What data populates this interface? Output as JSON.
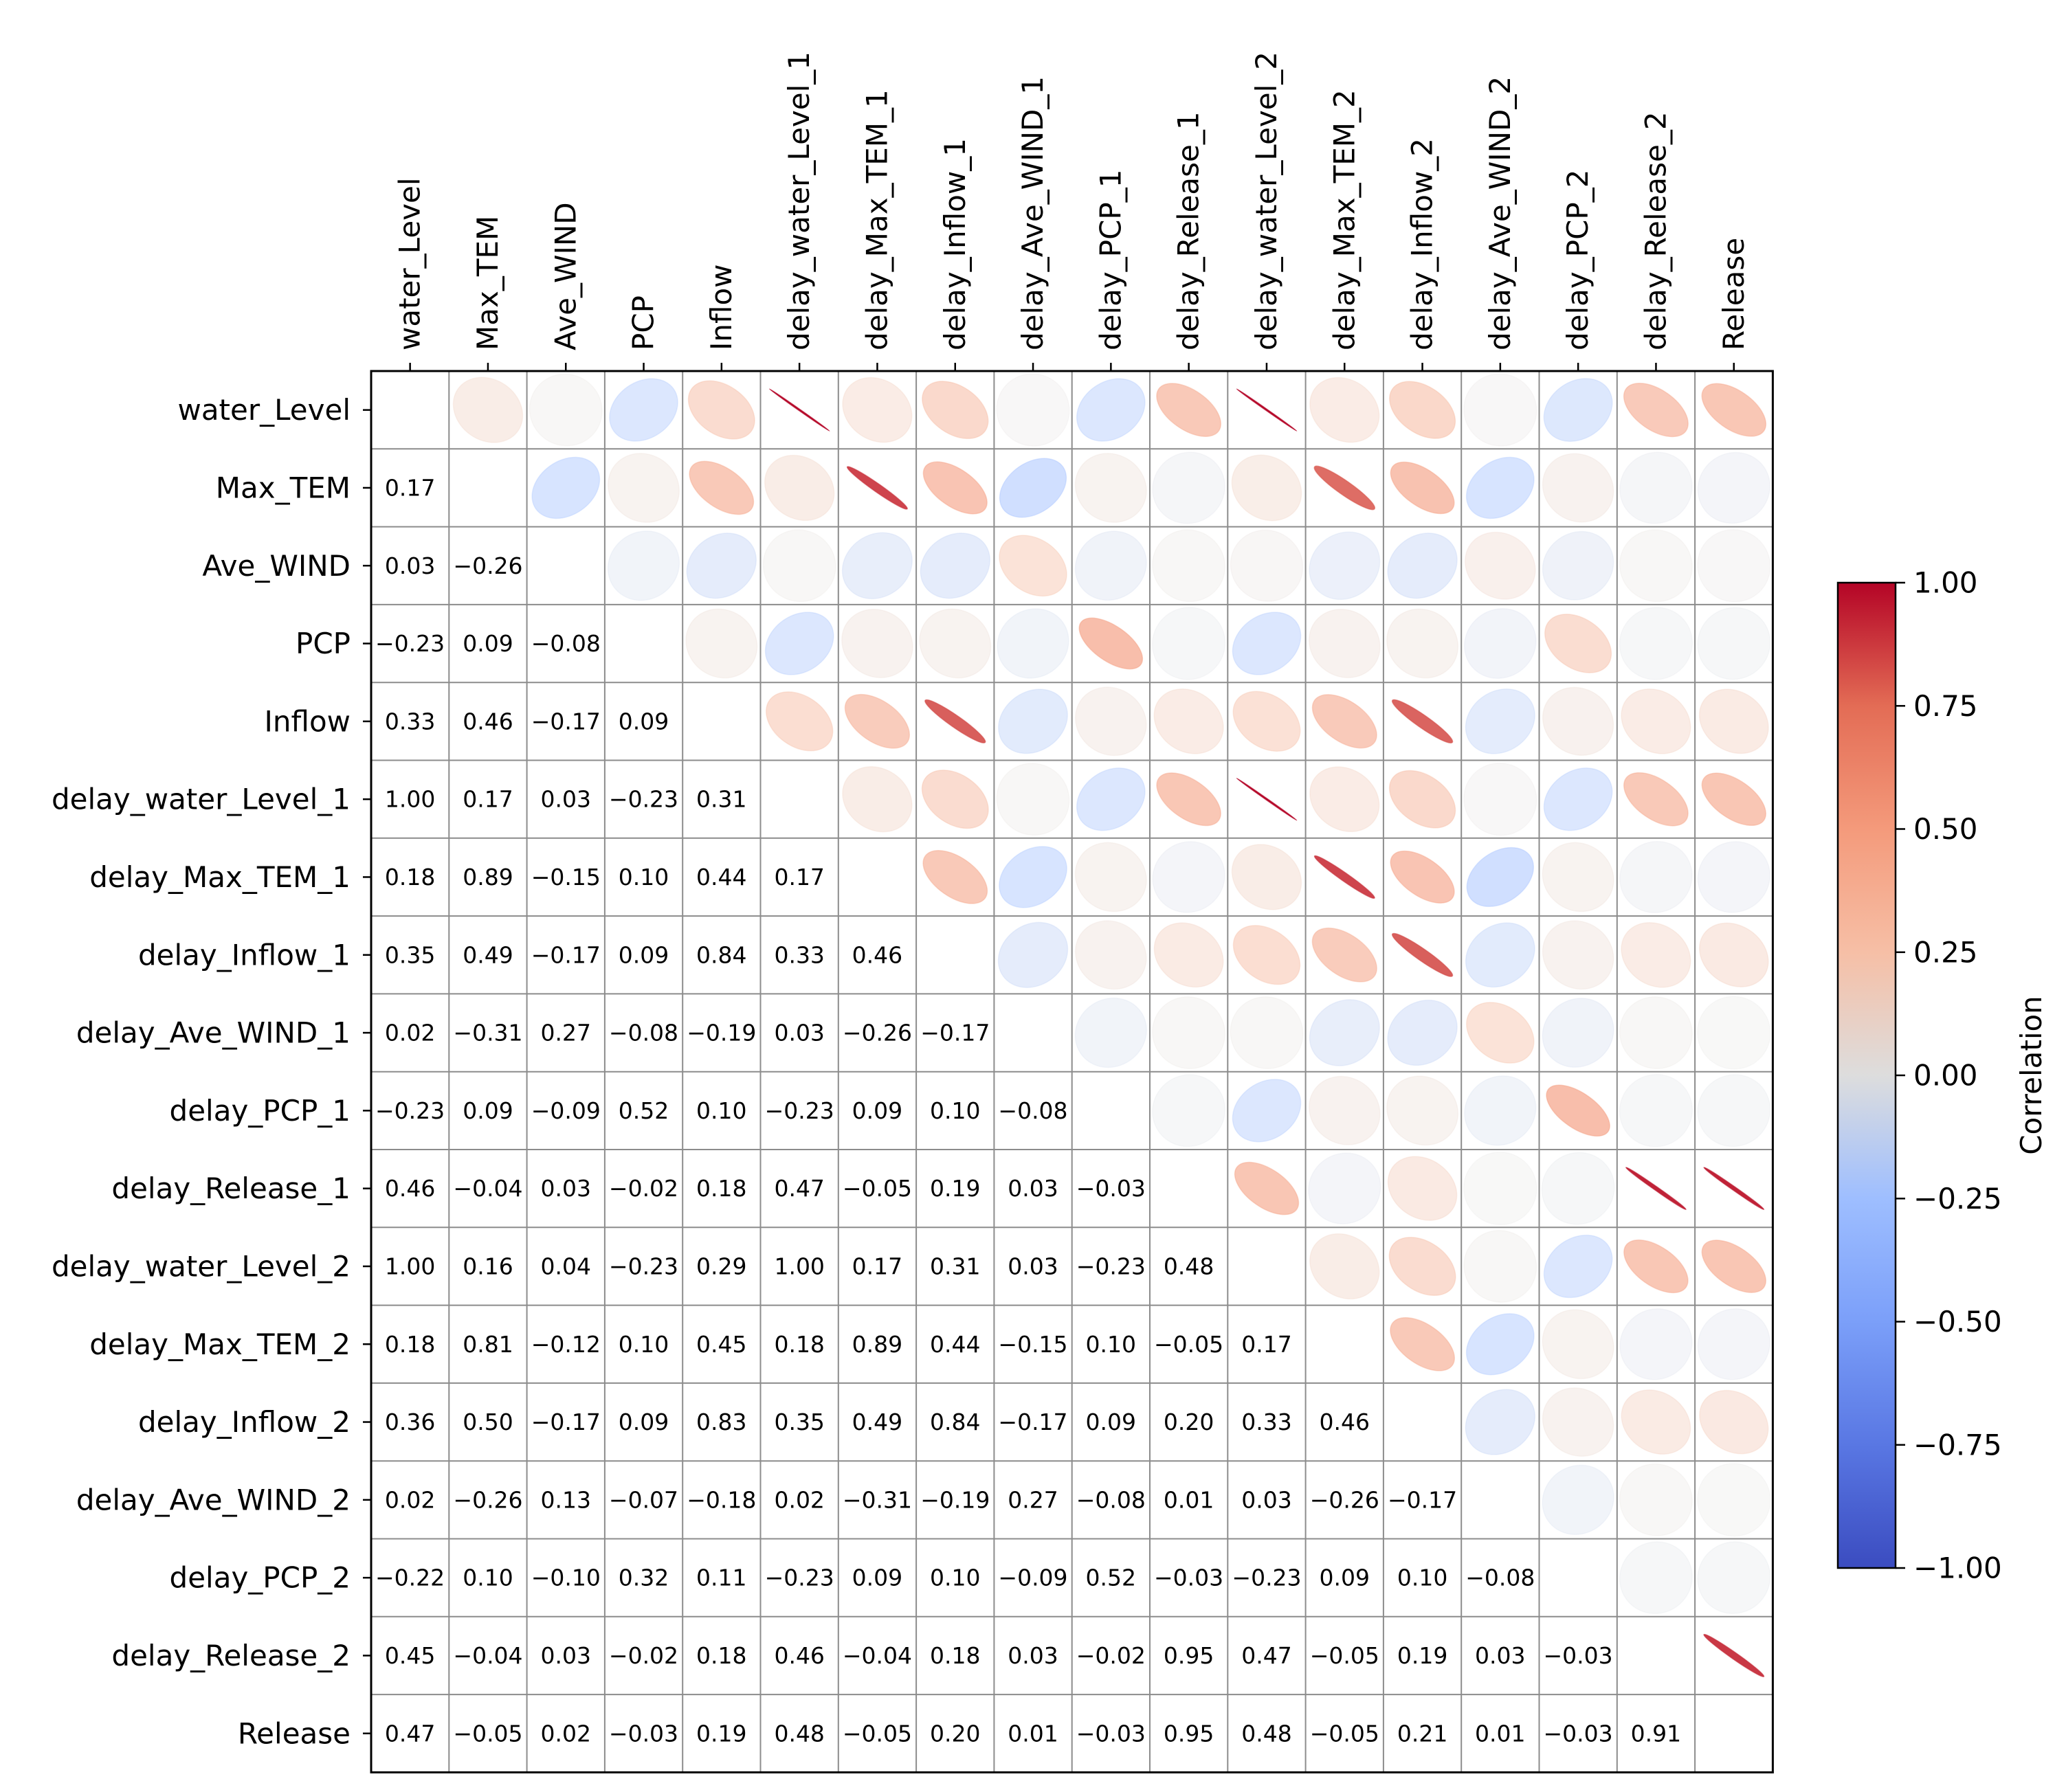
{
  "chart_data": {
    "type": "heatmap",
    "title": "",
    "variables": [
      "water_Level",
      "Max_TEM",
      "Ave_WIND",
      "PCP",
      "Inflow",
      "delay_water_Level_1",
      "delay_Max_TEM_1",
      "delay_Inflow_1",
      "delay_Ave_WIND_1",
      "delay_PCP_1",
      "delay_Release_1",
      "delay_water_Level_2",
      "delay_Max_TEM_2",
      "delay_Inflow_2",
      "delay_Ave_WIND_2",
      "delay_PCP_2",
      "delay_Release_2",
      "Release"
    ],
    "lower_triangle_labels": [
      [],
      [
        "0.17"
      ],
      [
        "0.03",
        "−0.26"
      ],
      [
        "−0.23",
        "0.09",
        "−0.08"
      ],
      [
        "0.33",
        "0.46",
        "−0.17",
        "0.09"
      ],
      [
        "1.00",
        "0.17",
        "0.03",
        "−0.23",
        "0.31"
      ],
      [
        "0.18",
        "0.89",
        "−0.15",
        "0.10",
        "0.44",
        "0.17"
      ],
      [
        "0.35",
        "0.49",
        "−0.17",
        "0.09",
        "0.84",
        "0.33",
        "0.46"
      ],
      [
        "0.02",
        "−0.31",
        "0.27",
        "−0.08",
        "−0.19",
        "0.03",
        "−0.26",
        "−0.17"
      ],
      [
        "−0.23",
        "0.09",
        "−0.09",
        "0.52",
        "0.10",
        "−0.23",
        "0.09",
        "0.10",
        "−0.08"
      ],
      [
        "0.46",
        "−0.04",
        "0.03",
        "−0.02",
        "0.18",
        "0.47",
        "−0.05",
        "0.19",
        "0.03",
        "−0.03"
      ],
      [
        "1.00",
        "0.16",
        "0.04",
        "−0.23",
        "0.29",
        "1.00",
        "0.17",
        "0.31",
        "0.03",
        "−0.23",
        "0.48"
      ],
      [
        "0.18",
        "0.81",
        "−0.12",
        "0.10",
        "0.45",
        "0.18",
        "0.89",
        "0.44",
        "−0.15",
        "0.10",
        "−0.05",
        "0.17"
      ],
      [
        "0.36",
        "0.50",
        "−0.17",
        "0.09",
        "0.83",
        "0.35",
        "0.49",
        "0.84",
        "−0.17",
        "0.09",
        "0.20",
        "0.33",
        "0.46"
      ],
      [
        "0.02",
        "−0.26",
        "0.13",
        "−0.07",
        "−0.18",
        "0.02",
        "−0.31",
        "−0.19",
        "0.27",
        "−0.08",
        "0.01",
        "0.03",
        "−0.26",
        "−0.17"
      ],
      [
        "−0.22",
        "0.10",
        "−0.10",
        "0.32",
        "0.11",
        "−0.23",
        "0.09",
        "0.10",
        "−0.09",
        "0.52",
        "−0.03",
        "−0.23",
        "0.09",
        "0.10",
        "−0.08"
      ],
      [
        "0.45",
        "−0.04",
        "0.03",
        "−0.02",
        "0.18",
        "0.46",
        "−0.04",
        "0.18",
        "0.03",
        "−0.02",
        "0.95",
        "0.47",
        "−0.05",
        "0.19",
        "0.03",
        "−0.03"
      ],
      [
        "0.47",
        "−0.05",
        "0.02",
        "−0.03",
        "0.19",
        "0.48",
        "−0.05",
        "0.20",
        "0.01",
        "−0.03",
        "0.95",
        "0.48",
        "−0.05",
        "0.21",
        "0.01",
        "−0.03",
        "0.91"
      ]
    ],
    "upper_triangle_encoding": "ellipse",
    "colormap": {
      "name": "coolwarm",
      "low": "#3b4cc0",
      "mid": "#dddddd",
      "high": "#b40426"
    },
    "colorbar": {
      "label": "Correlation",
      "range": [
        -1,
        1
      ],
      "ticks": [
        1,
        0.75,
        0.5,
        0.25,
        0,
        -0.25,
        -0.5,
        -0.75,
        -1
      ],
      "tick_labels": [
        "1.00",
        "0.75",
        "0.50",
        "0.25",
        "0.00",
        "−0.25",
        "−0.50",
        "−0.75",
        "−1.00"
      ]
    },
    "grid": true
  }
}
